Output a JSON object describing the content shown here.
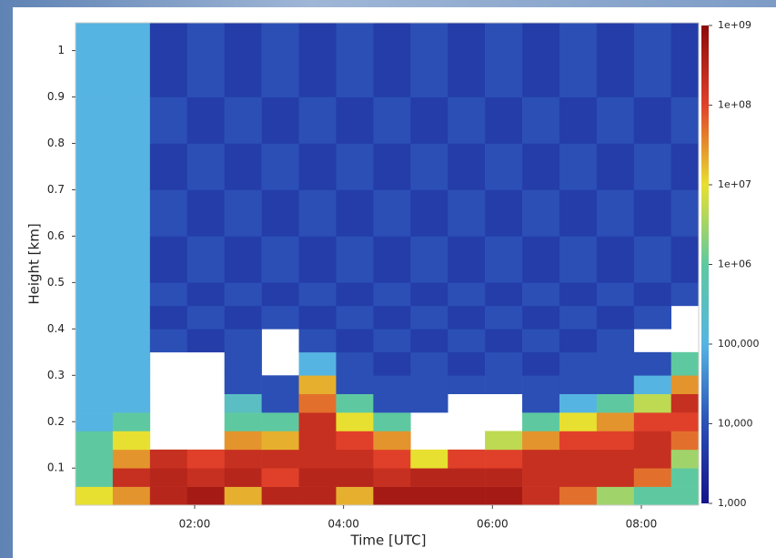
{
  "chart_data": {
    "type": "heatmap",
    "xlabel": "Time [UTC]",
    "ylabel": "Height [km]",
    "xlim": [
      0.4,
      8.77
    ],
    "ylim": [
      0.02,
      1.06
    ],
    "xticks": [
      {
        "value": 2,
        "label": "02:00"
      },
      {
        "value": 4,
        "label": "04:00"
      },
      {
        "value": 6,
        "label": "06:00"
      },
      {
        "value": 8,
        "label": "08:00"
      }
    ],
    "yticks": [
      0.1,
      0.2,
      0.3,
      0.4,
      0.5,
      0.6,
      0.7,
      0.8,
      0.9,
      1
    ],
    "xbins": [
      0.4,
      0.9,
      1.4,
      1.9,
      2.4,
      2.9,
      3.4,
      3.9,
      4.4,
      4.9,
      5.4,
      5.9,
      6.4,
      6.9,
      7.4,
      7.9,
      8.4,
      8.77
    ],
    "ybins": [
      0.02,
      0.06,
      0.1,
      0.14,
      0.18,
      0.22,
      0.26,
      0.3,
      0.35,
      0.4,
      0.45,
      0.5,
      0.6,
      0.7,
      0.8,
      0.9,
      1.06
    ],
    "color_scale": "log",
    "clim": [
      1000,
      1000000000
    ],
    "cticks": [
      {
        "value": 1000000000,
        "label": "1e+09"
      },
      {
        "value": 100000000,
        "label": "1e+08"
      },
      {
        "value": 10000000,
        "label": "1e+07"
      },
      {
        "value": 1000000,
        "label": "1e+06"
      },
      {
        "value": 100000,
        "label": "100,000"
      },
      {
        "value": 10000,
        "label": "10,000"
      },
      {
        "value": 1000,
        "label": "1,000"
      }
    ],
    "colormap": [
      "#14148a",
      "#2b4fb5",
      "#56b4e2",
      "#5ec9a0",
      "#e8e030",
      "#e0402a",
      "#8b0a0a"
    ],
    "z": [
      [
        10000000,
        30000000,
        300000000,
        500000000,
        20000000,
        300000000,
        300000000,
        20000000,
        500000000,
        500000000,
        500000000,
        500000000,
        200000000,
        50000000,
        3000000,
        1000000,
        1000000
      ],
      [
        1000000,
        200000000,
        300000000,
        200000000,
        300000000,
        100000000,
        300000000,
        300000000,
        200000000,
        300000000,
        300000000,
        300000000,
        200000000,
        200000000,
        200000000,
        50000000,
        1000000
      ],
      [
        1000000,
        30000000,
        200000000,
        100000000,
        200000000,
        200000000,
        200000000,
        200000000,
        100000000,
        10000000,
        100000000,
        100000000,
        200000000,
        200000000,
        200000000,
        200000000,
        3000000
      ],
      [
        1000000,
        10000000,
        null,
        null,
        30000000,
        20000000,
        200000000,
        100000000,
        30000000,
        null,
        null,
        5000000,
        30000000,
        100000000,
        100000000,
        200000000,
        50000000
      ],
      [
        100000,
        1000000,
        null,
        null,
        1000000,
        1000000,
        200000000,
        10000000,
        1000000,
        null,
        null,
        null,
        1000000,
        10000000,
        30000000,
        100000000,
        100000000
      ],
      [
        100000,
        100000,
        null,
        null,
        300000,
        10000,
        50000000,
        1000000,
        10000,
        10000,
        null,
        null,
        10000,
        100000,
        1000000,
        5000000,
        200000000
      ],
      [
        100000,
        100000,
        null,
        null,
        10000,
        10000,
        20000000,
        10000,
        10000,
        10000,
        10000,
        10000,
        10000,
        10000,
        10000,
        100000,
        30000000
      ],
      [
        100000,
        100000,
        null,
        null,
        10000,
        null,
        100000,
        10000,
        5000,
        10000,
        5000,
        10000,
        5000,
        10000,
        10000,
        10000,
        1000000
      ],
      [
        100000,
        100000,
        10000,
        5000,
        10000,
        null,
        10000,
        5000,
        10000,
        5000,
        10000,
        5000,
        10000,
        5000,
        10000,
        null,
        null
      ],
      [
        100000,
        100000,
        5000,
        10000,
        5000,
        10000,
        5000,
        10000,
        5000,
        10000,
        5000,
        10000,
        5000,
        10000,
        5000,
        10000,
        null
      ],
      [
        100000,
        100000,
        10000,
        5000,
        10000,
        5000,
        10000,
        5000,
        10000,
        5000,
        10000,
        5000,
        10000,
        5000,
        10000,
        5000,
        10000
      ],
      [
        100000,
        100000,
        5000,
        10000,
        5000,
        10000,
        5000,
        10000,
        5000,
        10000,
        5000,
        10000,
        5000,
        10000,
        5000,
        10000,
        5000
      ],
      [
        100000,
        100000,
        10000,
        5000,
        10000,
        5000,
        10000,
        5000,
        10000,
        5000,
        10000,
        5000,
        10000,
        5000,
        10000,
        5000,
        10000
      ],
      [
        100000,
        100000,
        5000,
        10000,
        5000,
        10000,
        5000,
        10000,
        5000,
        10000,
        5000,
        10000,
        5000,
        10000,
        5000,
        10000,
        5000
      ],
      [
        100000,
        100000,
        10000,
        5000,
        10000,
        5000,
        10000,
        5000,
        10000,
        5000,
        10000,
        5000,
        10000,
        5000,
        10000,
        5000,
        10000
      ],
      [
        100000,
        100000,
        5000,
        10000,
        5000,
        10000,
        5000,
        10000,
        5000,
        10000,
        5000,
        10000,
        5000,
        10000,
        5000,
        10000,
        5000
      ]
    ]
  }
}
